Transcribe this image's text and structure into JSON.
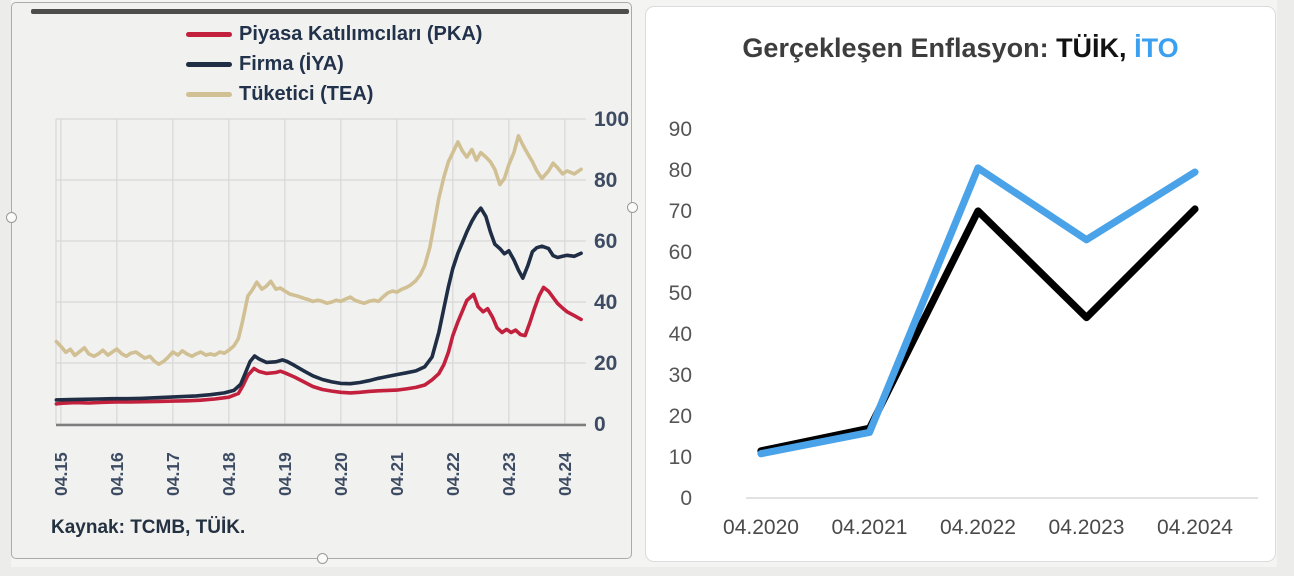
{
  "left_panel": {
    "source_note": "Kaynak: TCMB, TÜİK."
  },
  "right_panel": {
    "title_parts": {
      "prefix": "Gerçekleşen Enflasyon: ",
      "tuik": "TÜİK,",
      "ito": " İTO",
      "prefix_color": "#3d3d3d",
      "tuik_color": "#121212",
      "ito_color": "#3ba0ef"
    }
  },
  "chart_data": [
    {
      "type": "line",
      "title": "",
      "ylim": [
        0,
        100
      ],
      "yticks": [
        0,
        20,
        40,
        60,
        80,
        100
      ],
      "x_tick_labels": [
        "04.15",
        "04.16",
        "04.17",
        "04.18",
        "04.19",
        "04.20",
        "04.21",
        "04.22",
        "04.23",
        "04.24"
      ],
      "x_tick_years": [
        2015.33,
        2016.33,
        2017.33,
        2018.33,
        2019.33,
        2020.33,
        2021.33,
        2022.33,
        2023.33,
        2024.33
      ],
      "grid": true,
      "legend_position": "top",
      "source_note": "Kaynak: TCMB, TÜİK.",
      "gridline_color": "#d8d8d7",
      "axis_line_color": "#7d7d7d",
      "series": [
        {
          "name": "Piyasa Katılımcıları (PKA)",
          "color": "#c2203d",
          "x": [
            2015.25,
            2015.33,
            2015.58,
            2015.83,
            2016.08,
            2016.33,
            2016.58,
            2016.83,
            2017.08,
            2017.33,
            2017.58,
            2017.83,
            2018.08,
            2018.33,
            2018.5,
            2018.58,
            2018.67,
            2018.78,
            2018.87,
            2019.0,
            2019.17,
            2019.25,
            2019.33,
            2019.5,
            2019.67,
            2019.83,
            2020.0,
            2020.17,
            2020.33,
            2020.5,
            2020.67,
            2020.83,
            2021.0,
            2021.17,
            2021.33,
            2021.5,
            2021.67,
            2021.83,
            2021.96,
            2022.08,
            2022.17,
            2022.25,
            2022.33,
            2022.42,
            2022.5,
            2022.58,
            2022.7,
            2022.78,
            2022.87,
            2022.95,
            2023.04,
            2023.12,
            2023.21,
            2023.29,
            2023.37,
            2023.45,
            2023.54,
            2023.62,
            2023.7,
            2023.79,
            2023.87,
            2023.95,
            2024.04,
            2024.12,
            2024.2,
            2024.29,
            2024.37,
            2024.5,
            2024.62
          ],
          "y": [
            6.6,
            6.8,
            7.0,
            6.9,
            7.1,
            7.2,
            7.2,
            7.3,
            7.4,
            7.5,
            7.6,
            7.8,
            8.2,
            8.8,
            10,
            12.5,
            16,
            18.2,
            17.2,
            16.6,
            16.9,
            17.3,
            16.8,
            15.4,
            13.8,
            12.3,
            11.3,
            10.8,
            10.4,
            10.2,
            10.4,
            10.7,
            10.9,
            11.0,
            11.1,
            11.5,
            12.0,
            12.8,
            14.5,
            16.5,
            19.5,
            23.5,
            29,
            33.5,
            37,
            40.5,
            42.5,
            38.5,
            36.8,
            37.8,
            35,
            31.5,
            30,
            31,
            30,
            30.8,
            29.3,
            29,
            33,
            38,
            42,
            44.8,
            43.5,
            41.5,
            39.5,
            38,
            36.8,
            35.5,
            34.3
          ]
        },
        {
          "name": "Firma (İYA)",
          "color": "#1f2e44",
          "x": [
            2015.25,
            2015.5,
            2015.75,
            2016.0,
            2016.25,
            2016.5,
            2016.75,
            2017.0,
            2017.25,
            2017.5,
            2017.75,
            2018.0,
            2018.25,
            2018.42,
            2018.54,
            2018.62,
            2018.71,
            2018.79,
            2018.87,
            2019.0,
            2019.17,
            2019.29,
            2019.37,
            2019.5,
            2019.67,
            2019.83,
            2020.0,
            2020.17,
            2020.33,
            2020.5,
            2020.67,
            2020.83,
            2021.0,
            2021.17,
            2021.33,
            2021.5,
            2021.67,
            2021.83,
            2021.96,
            2022.08,
            2022.17,
            2022.25,
            2022.33,
            2022.42,
            2022.5,
            2022.58,
            2022.67,
            2022.75,
            2022.83,
            2022.92,
            2023.0,
            2023.08,
            2023.17,
            2023.25,
            2023.33,
            2023.42,
            2023.5,
            2023.58,
            2023.67,
            2023.75,
            2023.83,
            2023.92,
            2024.04,
            2024.12,
            2024.2,
            2024.29,
            2024.37,
            2024.5,
            2024.62
          ],
          "y": [
            7.9,
            8.0,
            8.1,
            8.2,
            8.3,
            8.3,
            8.4,
            8.6,
            8.8,
            9.0,
            9.2,
            9.6,
            10.2,
            11,
            13,
            16.5,
            20.5,
            22.3,
            21.3,
            20.2,
            20.4,
            21,
            20.5,
            19.2,
            17.4,
            15.8,
            14.6,
            13.8,
            13.3,
            13.2,
            13.6,
            14.2,
            15.0,
            15.6,
            16.2,
            16.8,
            17.4,
            18.8,
            22,
            30,
            38,
            45,
            51,
            56,
            59.5,
            63,
            66.5,
            69,
            70.8,
            68,
            63,
            59,
            57.5,
            55.8,
            56.8,
            53.8,
            50.5,
            47.8,
            52,
            56.5,
            57.8,
            58.3,
            57.5,
            55.2,
            54.6,
            55,
            55.3,
            55,
            56
          ]
        },
        {
          "name": "Tüketici (TEA)",
          "color": "#d1c094",
          "x": [
            2015.25,
            2015.33,
            2015.42,
            2015.5,
            2015.58,
            2015.67,
            2015.75,
            2015.83,
            2015.92,
            2016.0,
            2016.08,
            2016.17,
            2016.25,
            2016.33,
            2016.42,
            2016.5,
            2016.58,
            2016.67,
            2016.75,
            2016.83,
            2016.92,
            2017.0,
            2017.08,
            2017.17,
            2017.25,
            2017.33,
            2017.42,
            2017.5,
            2017.58,
            2017.67,
            2017.75,
            2017.83,
            2017.92,
            2018.0,
            2018.08,
            2018.17,
            2018.25,
            2018.33,
            2018.42,
            2018.5,
            2018.58,
            2018.67,
            2018.75,
            2018.83,
            2018.92,
            2019.0,
            2019.08,
            2019.17,
            2019.25,
            2019.33,
            2019.42,
            2019.5,
            2019.58,
            2019.67,
            2019.75,
            2019.83,
            2019.92,
            2020.0,
            2020.08,
            2020.17,
            2020.25,
            2020.33,
            2020.42,
            2020.5,
            2020.58,
            2020.67,
            2020.75,
            2020.83,
            2020.92,
            2021.0,
            2021.08,
            2021.17,
            2021.25,
            2021.33,
            2021.42,
            2021.5,
            2021.58,
            2021.67,
            2021.75,
            2021.83,
            2021.92,
            2022.0,
            2022.08,
            2022.17,
            2022.25,
            2022.33,
            2022.42,
            2022.5,
            2022.58,
            2022.67,
            2022.75,
            2022.83,
            2022.92,
            2023.0,
            2023.08,
            2023.17,
            2023.25,
            2023.33,
            2023.42,
            2023.5,
            2023.58,
            2023.67,
            2023.75,
            2023.83,
            2023.92,
            2024.04,
            2024.12,
            2024.2,
            2024.29,
            2024.37,
            2024.5,
            2024.62
          ],
          "y": [
            27,
            25.5,
            23.5,
            24.5,
            22.5,
            23.8,
            25,
            23,
            22.2,
            23,
            24.2,
            22.6,
            23.6,
            24.6,
            23,
            22.2,
            23.2,
            23.6,
            22.6,
            21.6,
            22.2,
            20.6,
            19.6,
            20.6,
            22,
            23.6,
            22.6,
            24,
            23,
            22.2,
            23,
            23.6,
            22.6,
            23,
            22.6,
            23.6,
            23.2,
            24.2,
            25.6,
            28,
            34,
            42,
            44,
            46.5,
            44.2,
            45.2,
            46.8,
            44.2,
            44.6,
            43.6,
            42.6,
            42.2,
            41.8,
            41.2,
            40.8,
            40.2,
            40.6,
            40.2,
            39.6,
            40,
            40.6,
            40.2,
            41,
            41.6,
            40.6,
            40,
            39.6,
            40.2,
            40.6,
            40.2,
            41.6,
            43,
            43.6,
            43.2,
            44.2,
            44.8,
            45.6,
            47,
            49,
            52,
            58,
            66,
            74,
            81,
            86,
            89,
            92.5,
            89.5,
            87.5,
            90,
            86.5,
            89,
            87.5,
            86,
            83.5,
            78.5,
            80.5,
            85,
            89,
            94.5,
            91.5,
            88.5,
            86,
            83,
            80.5,
            83,
            85.5,
            84,
            82,
            83,
            82,
            83.5
          ]
        }
      ]
    },
    {
      "type": "line",
      "title": "Gerçekleşen Enflasyon: TÜİK, İTO",
      "ylim": [
        0,
        90
      ],
      "yticks": [
        0,
        10,
        20,
        30,
        40,
        50,
        60,
        70,
        80,
        90
      ],
      "categories": [
        "04.2020",
        "04.2021",
        "04.2022",
        "04.2023",
        "04.2024"
      ],
      "grid": false,
      "zero_axis_color": "#d9d9d9",
      "series": [
        {
          "name": "TÜİK",
          "color": "#000000",
          "values": [
            11.5,
            17,
            70,
            44,
            70.5
          ]
        },
        {
          "name": "İTO",
          "color": "#4aa3e8",
          "values": [
            10.8,
            16,
            80.5,
            63,
            79.5
          ]
        }
      ]
    }
  ]
}
